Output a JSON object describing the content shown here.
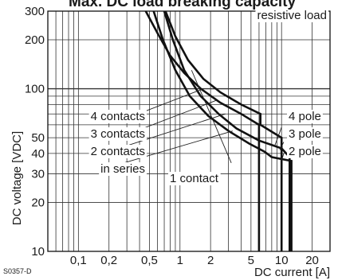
{
  "chart_data": {
    "type": "line",
    "title": "Max. DC load breaking capacity",
    "xlabel": "DC current [A]",
    "ylabel": "DC voltage [VDC]",
    "x_scale": "log",
    "y_scale": "log",
    "xlim": [
      0.05,
      30
    ],
    "ylim": [
      10,
      300
    ],
    "grid": true,
    "x_ticks": [
      {
        "value": 0.1,
        "label": "0,1"
      },
      {
        "value": 0.2,
        "label": "0,2"
      },
      {
        "value": 0.5,
        "label": "0,5"
      },
      {
        "value": 1,
        "label": "1"
      },
      {
        "value": 2,
        "label": "2"
      },
      {
        "value": 5,
        "label": "5"
      },
      {
        "value": 10,
        "label": "10"
      },
      {
        "value": 20,
        "label": "20"
      }
    ],
    "y_ticks": [
      {
        "value": 10,
        "label": "10"
      },
      {
        "value": 20,
        "label": "20"
      },
      {
        "value": 30,
        "label": "30"
      },
      {
        "value": 40,
        "label": "40"
      },
      {
        "value": 50,
        "label": "50"
      },
      {
        "value": 100,
        "label": "100"
      },
      {
        "value": 200,
        "label": "200"
      },
      {
        "value": 300,
        "label": "300"
      }
    ],
    "series": [
      {
        "name": "1 contact",
        "points": [
          [
            0.46,
            300
          ],
          [
            0.6,
            220
          ],
          [
            0.8,
            160
          ],
          [
            1.1,
            125
          ],
          [
            1.6,
            100
          ],
          [
            2.5,
            82
          ],
          [
            4,
            70
          ],
          [
            6,
            60
          ],
          [
            6,
            10
          ]
        ]
      },
      {
        "name": "2 contacts in series",
        "points": [
          [
            0.72,
            300
          ],
          [
            0.9,
            210
          ],
          [
            1.2,
            150
          ],
          [
            1.7,
            115
          ],
          [
            2.5,
            95
          ],
          [
            4,
            80
          ],
          [
            6.2,
            70
          ],
          [
            6.2,
            60
          ],
          [
            10,
            50
          ],
          [
            10,
            10
          ]
        ]
      },
      {
        "name": "3 contacts",
        "points": [
          [
            0.7,
            300
          ],
          [
            0.85,
            200
          ],
          [
            1.1,
            130
          ],
          [
            1.6,
            90
          ],
          [
            2.4,
            70
          ],
          [
            3.6,
            57
          ],
          [
            6,
            48
          ],
          [
            10,
            43
          ],
          [
            12,
            38
          ],
          [
            12,
            10
          ]
        ]
      },
      {
        "name": "4 contacts",
        "points": [
          [
            0.55,
            300
          ],
          [
            0.68,
            200
          ],
          [
            0.9,
            130
          ],
          [
            1.25,
            90
          ],
          [
            1.9,
            68
          ],
          [
            3,
            55
          ],
          [
            4.8,
            46
          ],
          [
            6.8,
            41
          ],
          [
            8,
            38
          ],
          [
            12.5,
            36
          ],
          [
            12.5,
            10
          ]
        ]
      }
    ],
    "annotations": [
      {
        "id": "resistive",
        "text": "resistive load"
      },
      {
        "id": "c4",
        "text": "4 contacts"
      },
      {
        "id": "c3",
        "text": "3 contacts"
      },
      {
        "id": "c2",
        "text": "2 contacts"
      },
      {
        "id": "series",
        "text": "in series"
      },
      {
        "id": "c1",
        "text": "1 contact"
      },
      {
        "id": "p4",
        "text": "4 pole"
      },
      {
        "id": "p3",
        "text": "3 pole"
      },
      {
        "id": "p2",
        "text": "2 pole"
      }
    ],
    "figure_code": "S0357-D"
  }
}
